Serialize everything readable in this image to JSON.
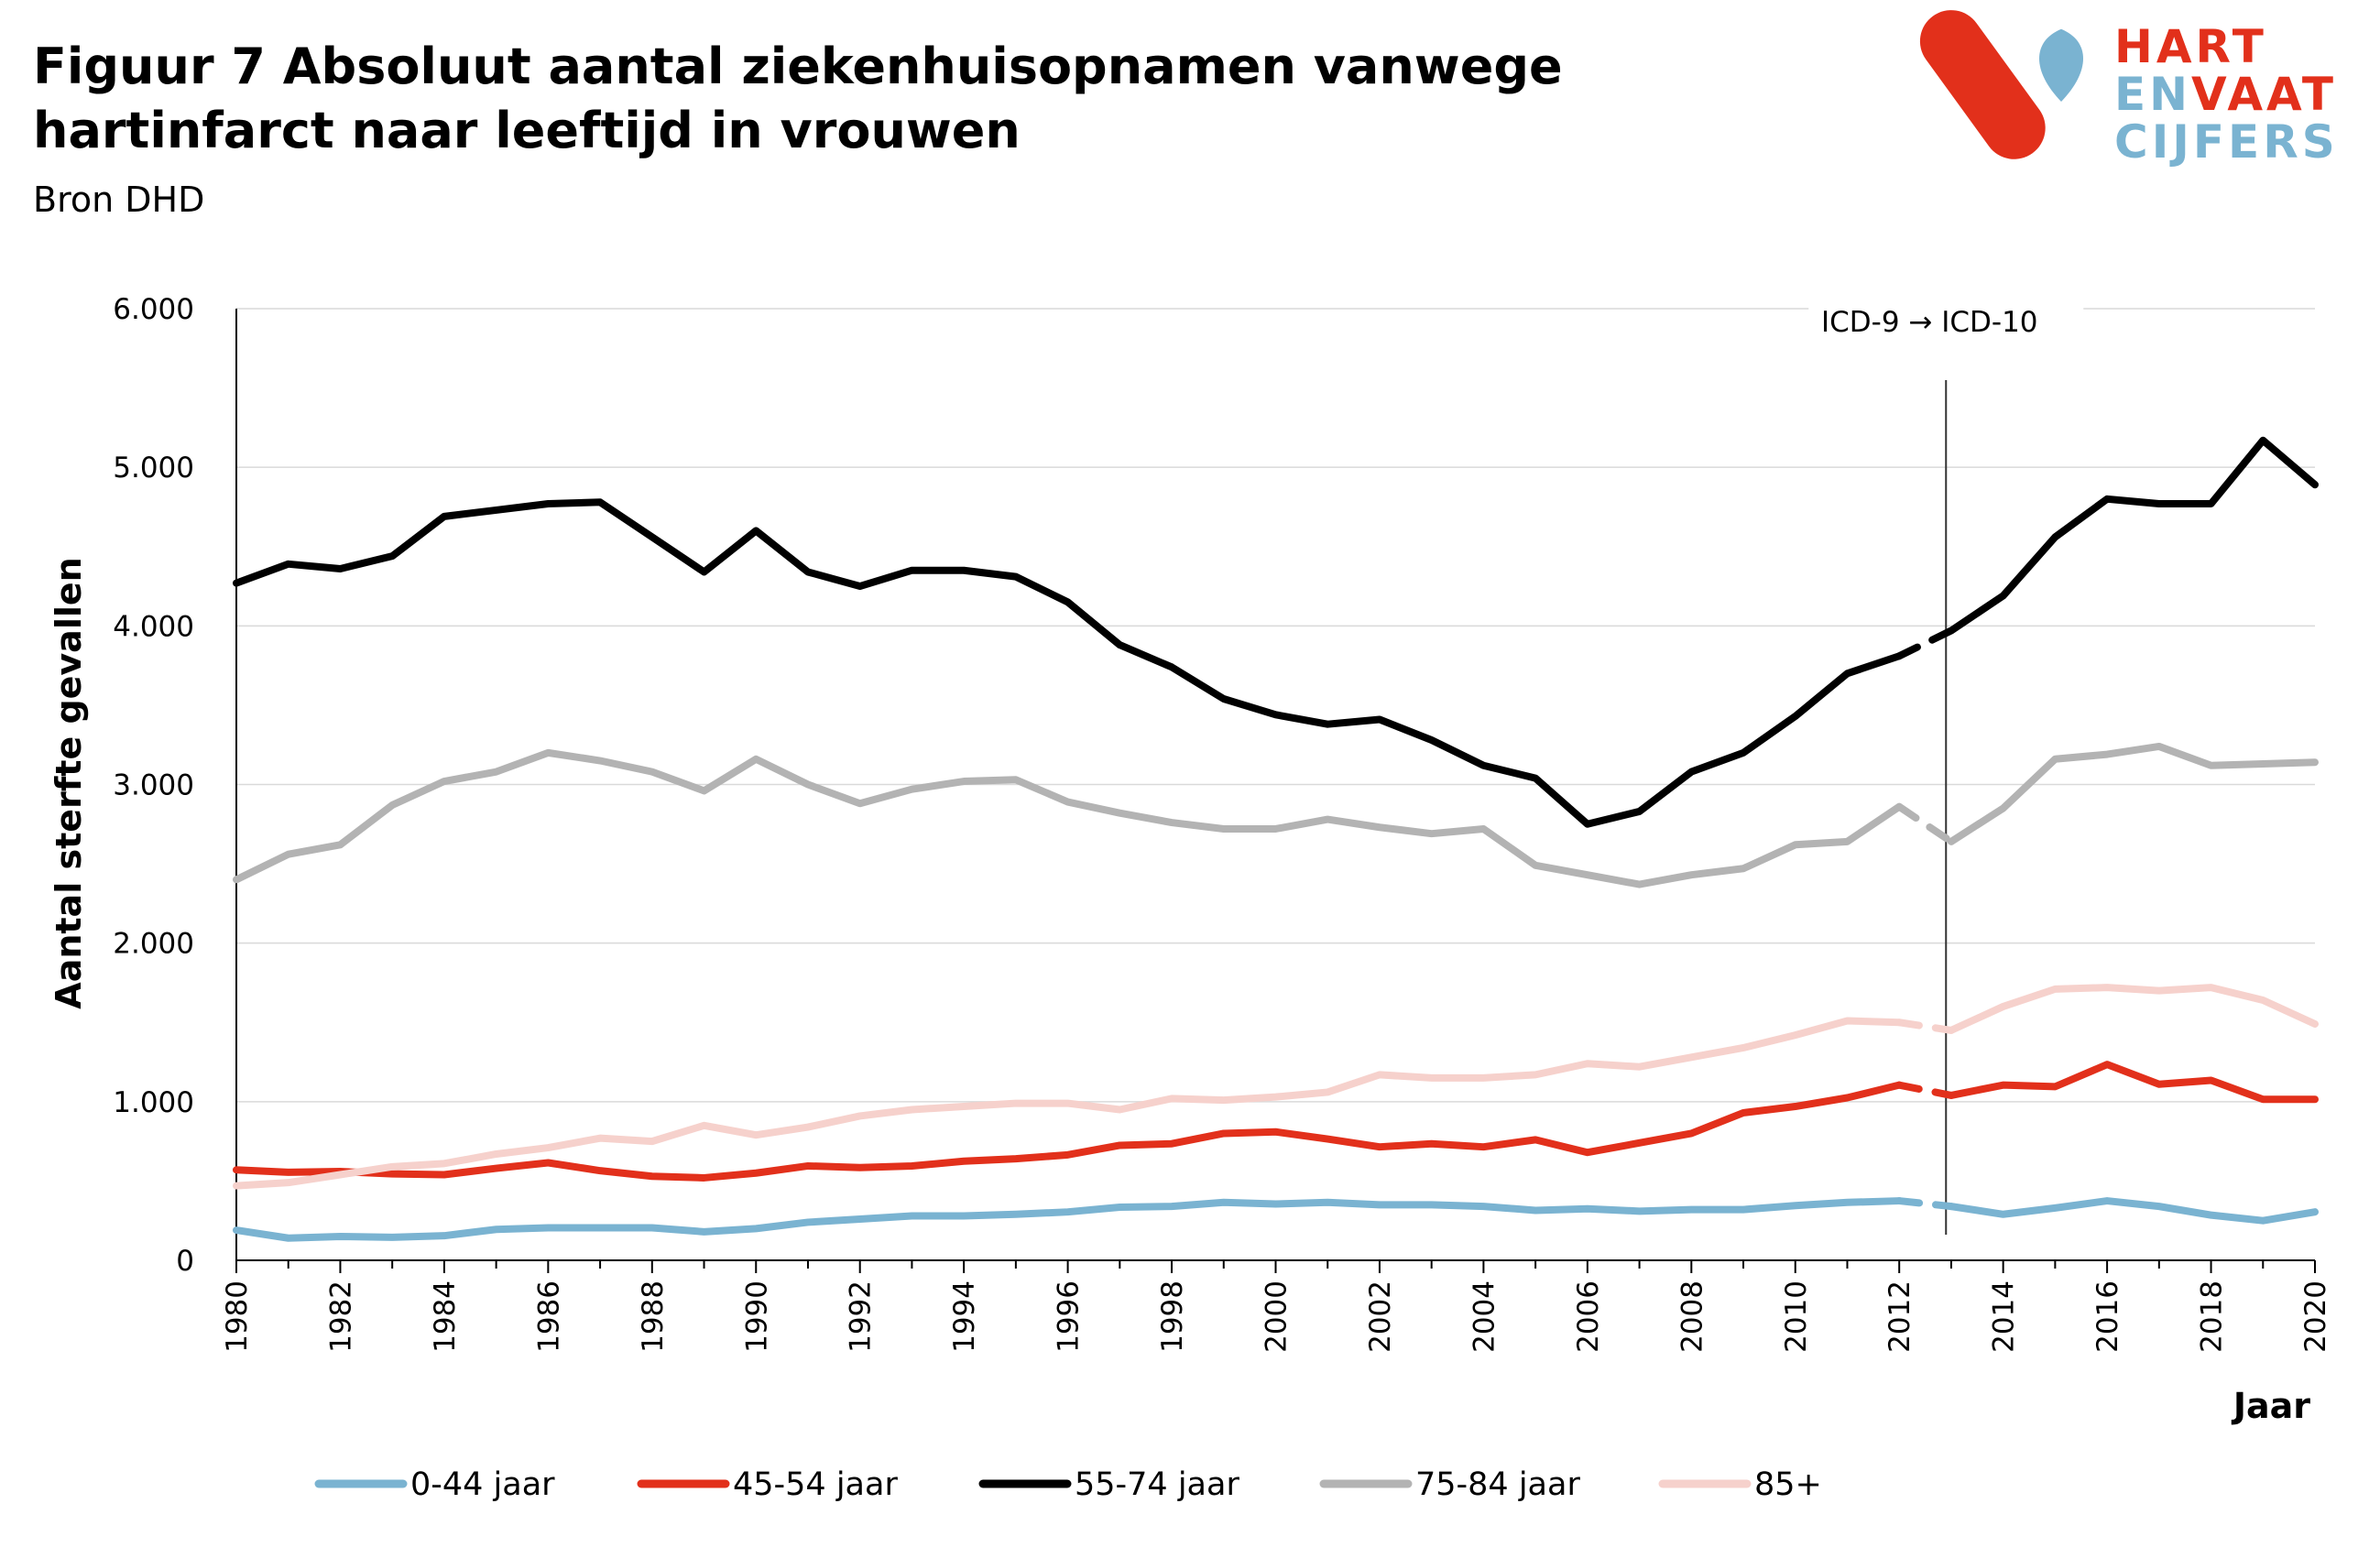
{
  "header": {
    "title": "Figuur 7  Absoluut aantal ziekenhuisopnamen vanwege hartinfarct naar leeftijd in vrouwen",
    "source": "Bron DHD"
  },
  "logo": {
    "line1": "HART",
    "line2a": "EN",
    "line2b": "VAAT",
    "line3": "CIJFERS",
    "color_red": "#e2301b",
    "color_blue": "#7ab3d1"
  },
  "chart_data": {
    "type": "line",
    "ylabel": "Aantal sterfte gevallen",
    "xlabel": "Jaar",
    "ylim": [
      0,
      6000
    ],
    "xlim": [
      1980,
      2020
    ],
    "y_ticks": [
      0,
      1000,
      2000,
      3000,
      4000,
      5000,
      6000
    ],
    "y_tick_labels": [
      "0",
      "1.000",
      "2.000",
      "3.000",
      "4.000",
      "5.000",
      "6.000"
    ],
    "x_ticks": [
      1980,
      1982,
      1984,
      1986,
      1988,
      1990,
      1992,
      1994,
      1996,
      1998,
      2000,
      2002,
      2004,
      2006,
      2008,
      2010,
      2012,
      2014,
      2016,
      2018,
      2020
    ],
    "x_tick_labels": [
      "1980",
      "1982",
      "1984",
      "1986",
      "1988",
      "1990",
      "1992",
      "1994",
      "1996",
      "1998",
      "2000",
      "2002",
      "2004",
      "2006",
      "2008",
      "2010",
      "2012",
      "2014",
      "2016",
      "2018",
      "2020"
    ],
    "grid": "horizontal",
    "legend_position": "bottom",
    "annotation": {
      "text": "ICD-9 → ICD-10",
      "x": 2012.9
    },
    "x": [
      1980,
      1981,
      1982,
      1983,
      1984,
      1985,
      1986,
      1987,
      1988,
      1989,
      1990,
      1991,
      1992,
      1993,
      1994,
      1995,
      1996,
      1997,
      1998,
      1999,
      2000,
      2001,
      2002,
      2003,
      2004,
      2005,
      2006,
      2007,
      2008,
      2009,
      2010,
      2011,
      2012,
      2013,
      2014,
      2015,
      2016,
      2017,
      2018,
      2019,
      2020
    ],
    "series": [
      {
        "name": "0-44 jaar",
        "color": "#7ab3d1",
        "values": [
          190,
          140,
          150,
          145,
          155,
          195,
          205,
          205,
          205,
          180,
          200,
          240,
          260,
          280,
          280,
          290,
          305,
          335,
          340,
          365,
          355,
          365,
          350,
          350,
          340,
          315,
          325,
          310,
          320,
          320,
          345,
          365,
          375,
          340,
          290,
          330,
          375,
          340,
          285,
          250,
          305
        ]
      },
      {
        "name": "45-54 jaar",
        "color": "#e2301b",
        "values": [
          570,
          555,
          560,
          545,
          540,
          580,
          615,
          565,
          530,
          520,
          550,
          595,
          585,
          595,
          625,
          640,
          665,
          725,
          735,
          800,
          810,
          765,
          715,
          735,
          715,
          760,
          680,
          740,
          800,
          930,
          970,
          1025,
          1105,
          1040,
          1105,
          1095,
          1235,
          1110,
          1135,
          1015,
          1015
        ]
      },
      {
        "name": "55-74 jaar",
        "color": "#000000",
        "values": [
          4270,
          4390,
          4360,
          4440,
          4690,
          4730,
          4770,
          4780,
          4560,
          4340,
          4600,
          4340,
          4250,
          4350,
          4350,
          4310,
          4150,
          3880,
          3740,
          3540,
          3440,
          3380,
          3410,
          3280,
          3120,
          3040,
          2750,
          2830,
          3080,
          3200,
          3430,
          3700,
          3810,
          3970,
          4190,
          4560,
          4800,
          4770,
          4770,
          5170,
          4890
        ]
      },
      {
        "name": "75-84 jaar",
        "color": "#b3b3b3",
        "values": [
          2400,
          2560,
          2620,
          2870,
          3020,
          3080,
          3200,
          3150,
          3080,
          2960,
          3160,
          3000,
          2880,
          2970,
          3020,
          3030,
          2890,
          2820,
          2760,
          2720,
          2720,
          2780,
          2730,
          2690,
          2720,
          2490,
          2430,
          2370,
          2430,
          2470,
          2620,
          2640,
          2860,
          2640,
          2850,
          3160,
          3190,
          3240,
          3120,
          3130,
          3140
        ]
      },
      {
        "name": "85+",
        "color": "#f6d1cc",
        "values": [
          470,
          490,
          540,
          590,
          610,
          670,
          710,
          770,
          750,
          850,
          790,
          840,
          910,
          950,
          970,
          990,
          990,
          950,
          1020,
          1010,
          1030,
          1060,
          1170,
          1150,
          1150,
          1170,
          1240,
          1220,
          1280,
          1340,
          1420,
          1510,
          1500,
          1450,
          1600,
          1710,
          1720,
          1700,
          1720,
          1640,
          1490
        ]
      }
    ]
  }
}
